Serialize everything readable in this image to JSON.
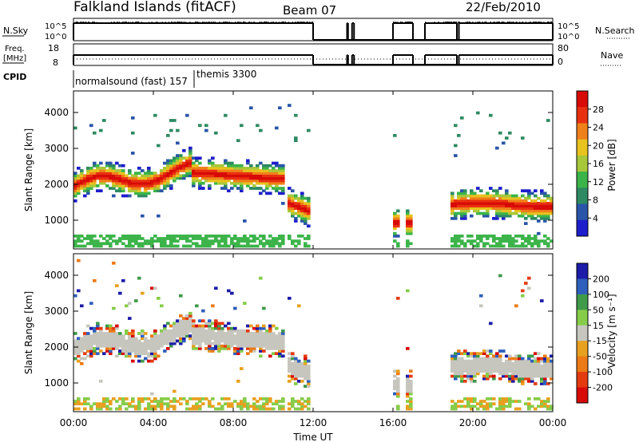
{
  "header": {
    "title": "Falkland Islands (fitACF)",
    "beam": "Beam 07",
    "date": "22/Feb/2010"
  },
  "top_panels": {
    "nsky_label": "N.Sky",
    "nsky_ticks": [
      "10^5",
      "10^0"
    ],
    "nsearch_label": "N.Search",
    "nsearch_ticks": [
      "10^5",
      "10^0"
    ],
    "freq_label_1": "Freq.",
    "freq_label_2": "[MHz]",
    "freq_ticks": [
      "18",
      "8"
    ],
    "nave_label": "Nave",
    "nave_ticks": [
      "80",
      "0"
    ],
    "cpid_label": "CPID",
    "cpid_text_1": "normalsound (fast) 157",
    "cpid_text_2": "themis 3300"
  },
  "colors": {
    "power_scale": [
      "#1d1dcc",
      "#2a55a8",
      "#2e8a62",
      "#3cb44a",
      "#a8c83a",
      "#e8c21e",
      "#f0801a",
      "#e83010",
      "#d80a08"
    ],
    "velocity_scale": [
      "#1c1ca8",
      "#2f5fbd",
      "#3f9a4a",
      "#86cc4a",
      "#c6c6be",
      "#e8a020",
      "#ec7a16",
      "#e43a10",
      "#d80a08"
    ],
    "gray": "#c6c6be"
  },
  "chart_data": [
    {
      "type": "heatmap",
      "name": "power",
      "ylabel": "Slant Range [km]",
      "yticks": [
        "4000",
        "3000",
        "2000",
        "1000"
      ],
      "ylim": [
        200,
        4600
      ],
      "xlim": [
        "00:00",
        "24:00"
      ],
      "colorbar_label": "Power [dB]",
      "colorbar_ticks": [
        "28",
        "24",
        "20",
        "16",
        "12",
        "8",
        "4"
      ],
      "colorbar_range": [
        0,
        30
      ],
      "coverage_hours": [
        [
          0,
          10.5
        ],
        [
          10.7,
          11.8
        ],
        [
          16.0,
          16.35
        ],
        [
          16.7,
          16.95
        ],
        [
          18.8,
          24
        ]
      ]
    },
    {
      "type": "heatmap",
      "name": "velocity",
      "ylabel": "Slant Range [km]",
      "yticks": [
        "4000",
        "3000",
        "2000",
        "1000"
      ],
      "ylim": [
        200,
        4600
      ],
      "xlim": [
        "00:00",
        "24:00"
      ],
      "colorbar_label": "Velocity [m s⁻¹]",
      "colorbar_ticks": [
        "200",
        "100",
        "50",
        "15",
        "-15",
        "-50",
        "-100",
        "-200"
      ],
      "colorbar_range": [
        -250,
        250
      ],
      "coverage_hours": [
        [
          0,
          10.5
        ],
        [
          10.7,
          11.8
        ],
        [
          16.0,
          16.35
        ],
        [
          16.7,
          16.95
        ],
        [
          18.8,
          24
        ]
      ]
    }
  ],
  "xaxis": {
    "ticks": [
      "00:00",
      "04:00",
      "08:00",
      "12:00",
      "16:00",
      "20:00",
      "00:00"
    ],
    "label": "Time UT"
  }
}
